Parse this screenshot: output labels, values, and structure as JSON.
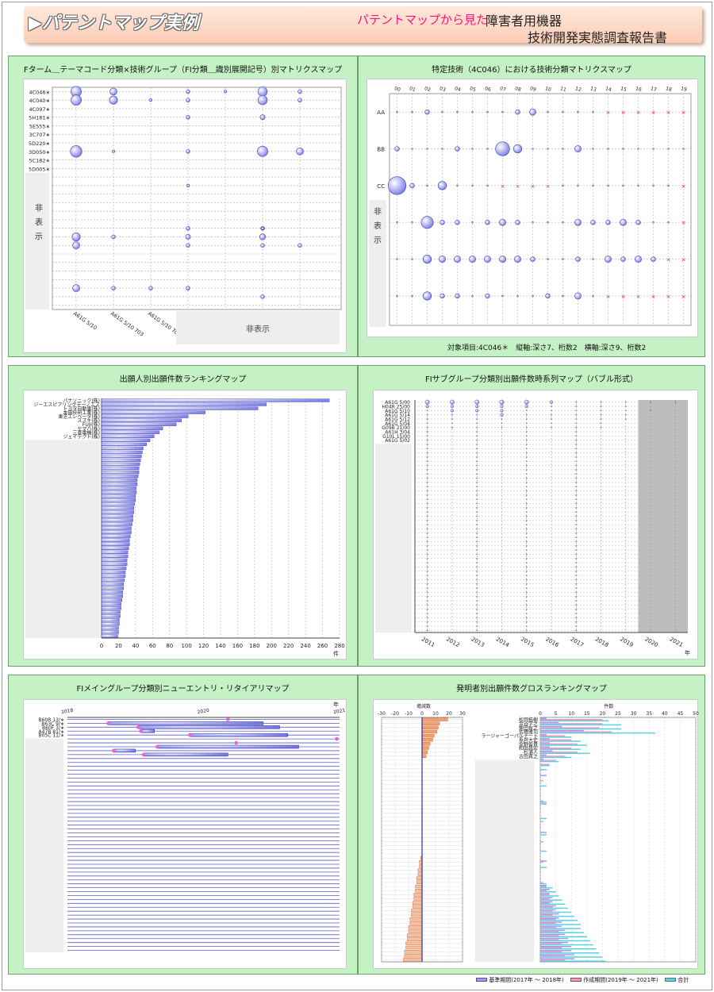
{
  "header": {
    "title": "▶パテントマップ実例",
    "subtitle": "パテントマップから見た",
    "right1": "障害者用機器",
    "right2": "技術開発実態調査報告書"
  },
  "hidden_label": "非表示",
  "hidden_vertical": [
    "非",
    "表",
    "示"
  ],
  "chart_data": [
    {
      "type": "scatter",
      "title": "Fターム＿テーマコード分類×技術グループ（FI分類＿識別展開記号）別マトリクスマップ",
      "ylabels": [
        "4C046∗",
        "4C040∗",
        "4C097∗",
        "5H181∗",
        "5E555∗",
        "3C707∗",
        "5D220∗",
        "3D050∗",
        "5C182∗",
        "5D005∗"
      ],
      "xlabels": [
        "A61G 5/10",
        "A61G 5/10 703",
        "A61G 5/10 704"
      ],
      "bubbles": [
        [
          0,
          0,
          8
        ],
        [
          0,
          1,
          8
        ],
        [
          1,
          0,
          5
        ],
        [
          1,
          1,
          6
        ],
        [
          2,
          1,
          1
        ],
        [
          3,
          0,
          2
        ],
        [
          3,
          1,
          2
        ],
        [
          4,
          0,
          1
        ],
        [
          5,
          0,
          7
        ],
        [
          5,
          1,
          7
        ],
        [
          6,
          0,
          2
        ],
        [
          6,
          1,
          2
        ],
        [
          3,
          3,
          2
        ],
        [
          5,
          3,
          3
        ],
        [
          0,
          7,
          9
        ],
        [
          1,
          7,
          1
        ],
        [
          3,
          7,
          2
        ],
        [
          5,
          7,
          8
        ],
        [
          6,
          7,
          5
        ]
      ]
    },
    {
      "type": "scatter",
      "title": "特定技術（4C046）における技術分類マトリクスマップ",
      "xlabels": [
        "00",
        "01",
        "02",
        "03",
        "04",
        "05",
        "06",
        "07",
        "08",
        "09",
        "10",
        "11",
        "12",
        "13",
        "14",
        "15",
        "16",
        "17",
        "18",
        "19"
      ],
      "ylabels": [
        "AA",
        "BB",
        "CC"
      ],
      "footnote": "対象項目:4C046＊　縦軸:深さ7、桁数2　横軸:深さ9、桁数2"
    },
    {
      "type": "bar",
      "title": "出願人別出願件数ランキングマップ",
      "categories": [
        "パナソニック(株)",
        "ジーエスピアリングテーノエス",
        "トヨタ自動車(株)",
        "本田技研工業(株)",
        "東芝エレベータ(株)",
        "スズキ(株)",
        "FUJI(株)",
        "ヤマハ(株)",
        "三菱電機(株)",
        "ジェイテクト(株)"
      ],
      "values": [
        268,
        194,
        184,
        122,
        102,
        94,
        88,
        72,
        68,
        62
      ],
      "xticks": [
        0,
        20,
        40,
        60,
        80,
        100,
        120,
        140,
        160,
        180,
        200,
        220,
        240,
        260,
        280
      ],
      "xunit": "件"
    },
    {
      "type": "scatter",
      "title": "FIサブグループ分類別出願件数時系列マップ（バブル形式）",
      "categories": [
        "A61G 5/00",
        "H04R 25/00",
        "A61G 5/10",
        "A61G 5/14",
        "A61G 5/12",
        "A61G 5/04",
        "G09B 21/00",
        "A61H 3/04",
        "G10L 15/00",
        "A61G 5/02"
      ],
      "years": [
        "2011",
        "2012",
        "2013",
        "2014",
        "2015",
        "2016",
        "2017",
        "2018",
        "2019",
        "2020",
        "2021"
      ],
      "yunit": "年"
    },
    {
      "type": "bar",
      "title": "FIメイングループ分類別ニューエントリ・リタイアリマップ",
      "categories": [
        "B60R 13/∗",
        "B63C 9/∗",
        "B60F 3/∗",
        "A47B 81/∗",
        "B05C 11/∗"
      ],
      "years": [
        "2018",
        "2020",
        "2021"
      ],
      "unit": "年"
    },
    {
      "type": "bar",
      "title": "発明者別出願件数グロスランキングマップ",
      "categories": [
        "松岡拓樹",
        "金谷学之",
        "柴田有之",
        "佐橋雅司",
        "ラージャーゴーパルナート",
        "糸井大史",
        "金野俊貴",
        "和田昌宏",
        "杉浦人",
        "古田真之"
      ],
      "left_label": "増減数",
      "left_ticks": [
        -30,
        -20,
        -10,
        0,
        10,
        20,
        30
      ],
      "right_label": "件数",
      "right_ticks": [
        0,
        5,
        10,
        15,
        20,
        25,
        30,
        35,
        40,
        45,
        50
      ],
      "legend": [
        "基準期間(2017年 ～ 2018年)",
        "作成期間(2019年 ～ 2021年)",
        "合計"
      ],
      "colors": [
        "#9a9cf0",
        "#f496c4",
        "#5ad0e2"
      ]
    }
  ]
}
